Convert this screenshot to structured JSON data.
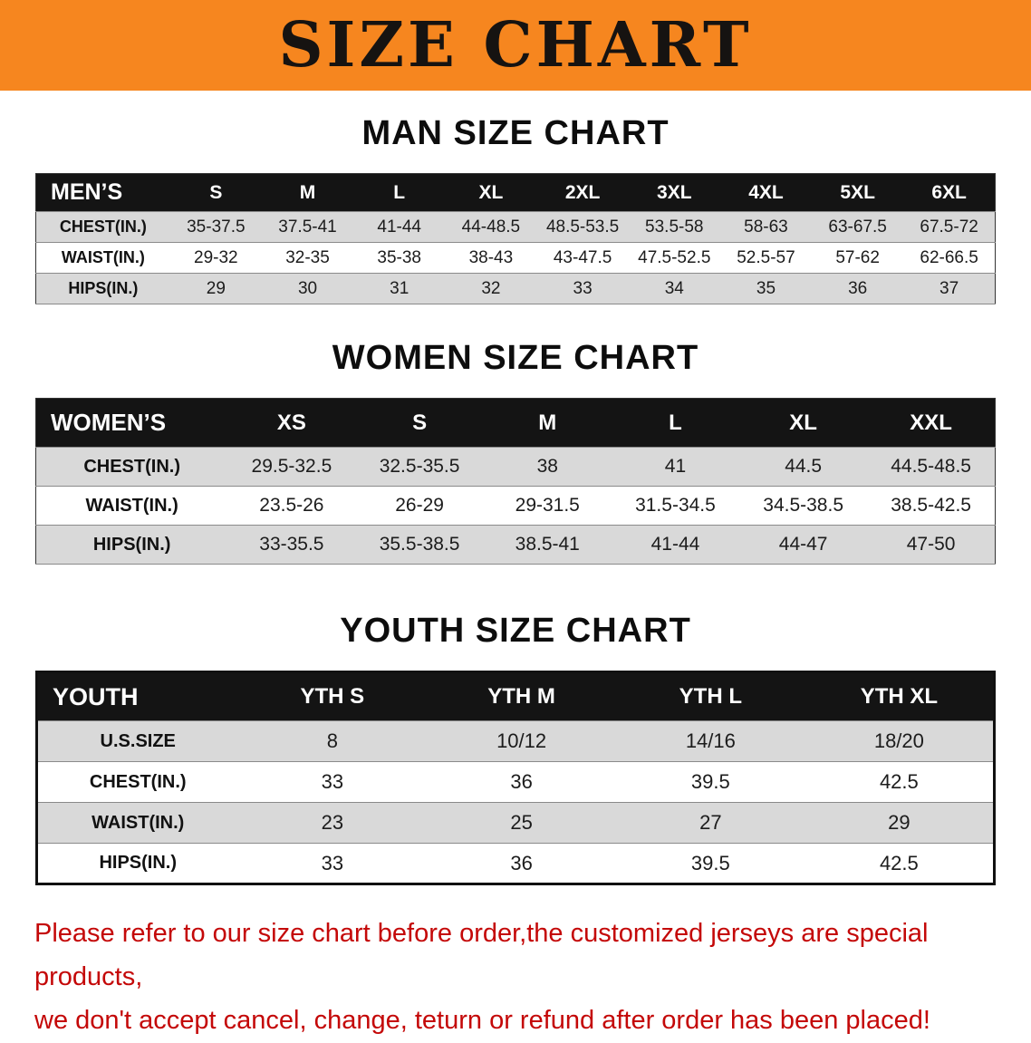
{
  "banner": {
    "title": "SIZE CHART"
  },
  "sections": [
    {
      "id": "men",
      "heading": "MAN SIZE CHART",
      "header": [
        "MEN’S",
        "S",
        "M",
        "L",
        "XL",
        "2XL",
        "3XL",
        "4XL",
        "5XL",
        "6XL"
      ],
      "rows": [
        [
          "CHEST(IN.)",
          "35-37.5",
          "37.5-41",
          "41-44",
          "44-48.5",
          "48.5-53.5",
          "53.5-58",
          "58-63",
          "63-67.5",
          "67.5-72"
        ],
        [
          "WAIST(IN.)",
          "29-32",
          "32-35",
          "35-38",
          "38-43",
          "43-47.5",
          "47.5-52.5",
          "52.5-57",
          "57-62",
          "62-66.5"
        ],
        [
          "HIPS(IN.)",
          "29",
          "30",
          "31",
          "32",
          "33",
          "34",
          "35",
          "36",
          "37"
        ]
      ]
    },
    {
      "id": "women",
      "heading": "WOMEN SIZE CHART",
      "header": [
        "WOMEN’S",
        "XS",
        "S",
        "M",
        "L",
        "XL",
        "XXL"
      ],
      "rows": [
        [
          "CHEST(IN.)",
          "29.5-32.5",
          "32.5-35.5",
          "38",
          "41",
          "44.5",
          "44.5-48.5"
        ],
        [
          "WAIST(IN.)",
          "23.5-26",
          "26-29",
          "29-31.5",
          "31.5-34.5",
          "34.5-38.5",
          "38.5-42.5"
        ],
        [
          "HIPS(IN.)",
          "33-35.5",
          "35.5-38.5",
          "38.5-41",
          "41-44",
          "44-47",
          "47-50"
        ]
      ]
    },
    {
      "id": "youth",
      "heading": "YOUTH SIZE CHART",
      "header": [
        "YOUTH",
        "YTH S",
        "YTH M",
        "YTH L",
        "YTH XL"
      ],
      "rows": [
        [
          "U.S.SIZE",
          "8",
          "10/12",
          "14/16",
          "18/20"
        ],
        [
          "CHEST(IN.)",
          "33",
          "36",
          "39.5",
          "42.5"
        ],
        [
          "WAIST(IN.)",
          "23",
          "25",
          "27",
          "29"
        ],
        [
          "HIPS(IN.)",
          "33",
          "36",
          "39.5",
          "42.5"
        ]
      ]
    }
  ],
  "footer": {
    "line1": "Please refer to our size chart before order,the customized jerseys are special products,",
    "line2": "we don't accept cancel, change, teturn or refund after order has been placed!"
  },
  "colors": {
    "banner_bg": "#f6861f",
    "table_header_bg": "#141414",
    "row_alt": "#d9d9d9",
    "footer_text": "#c40808"
  }
}
